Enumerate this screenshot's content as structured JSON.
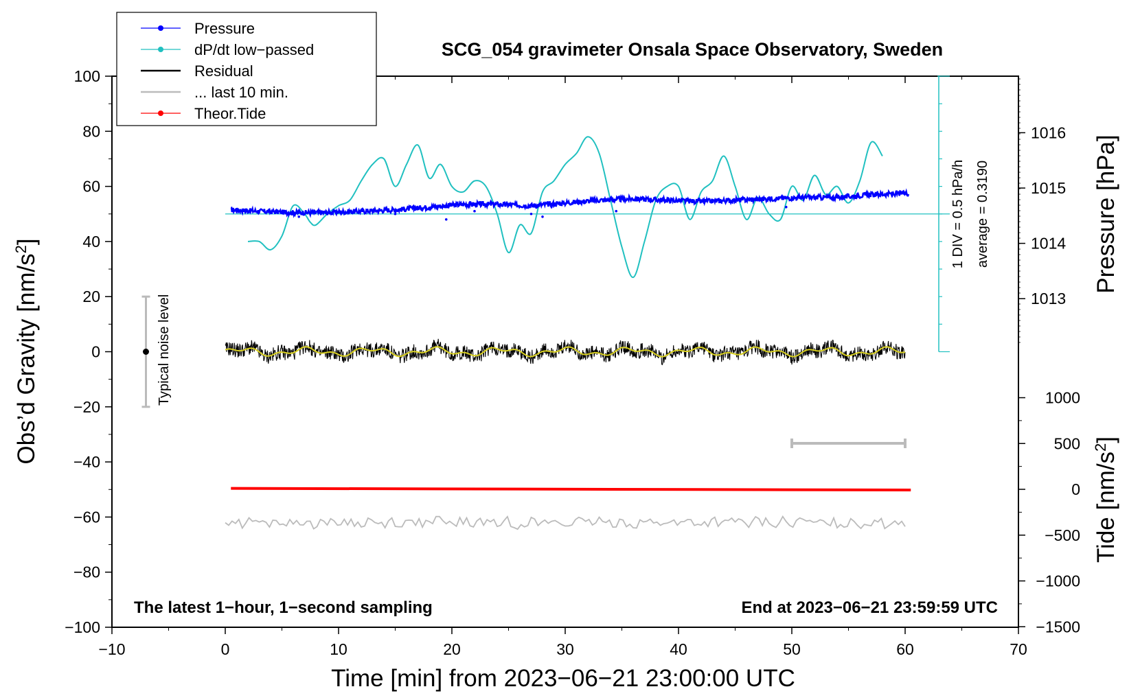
{
  "chart_data": {
    "type": "line",
    "title": "SCG_054 gravimeter Onsala Space Observatory, Sweden",
    "xlabel": "Time [min] from 2023−06−21 23:00:00 UTC",
    "ylabel": "Obs’d Gravity [nm/s²]",
    "ylabel_text": "Obs’d Gravity [nm/s",
    "ylabel_sup": "2",
    "ylabel_end": "]",
    "xlim": [
      -10,
      70
    ],
    "ylim": [
      -100,
      100
    ],
    "x_ticks": [
      "−10",
      "0",
      "10",
      "20",
      "30",
      "40",
      "50",
      "60",
      "70"
    ],
    "y_ticks": [
      "100",
      "80",
      "60",
      "40",
      "20",
      "0",
      "−20",
      "−40",
      "−60",
      "−80",
      "−100"
    ],
    "pressure_axis": {
      "label": "Pressure [hPa]",
      "ticks": [
        "1016",
        "1015",
        "1014",
        "1013"
      ],
      "tick_values": [
        1016,
        1015,
        1014,
        1013
      ]
    },
    "tide_axis": {
      "label_text": "Tide [nm/s",
      "label_sup": "2",
      "label_end": "]",
      "ticks": [
        "1000",
        "500",
        "0",
        "−500",
        "−1000",
        "−1500"
      ],
      "tick_values": [
        1000,
        500,
        0,
        -500,
        -1000,
        -1500
      ]
    },
    "scale_bar": {
      "label1": "1 DIV = 0.5 hPa/h",
      "label2": "average = 0.3190"
    },
    "noise_bar": {
      "label": "Typical noise level",
      "x": -7,
      "y_center": 0,
      "half_range": 20
    },
    "bottom_left_note": "The latest 1−hour, 1−second sampling",
    "bottom_right_note": "End at 2023−06−21 23:59:59 UTC",
    "legend": [
      {
        "label": "Pressure",
        "color": "#0000ff",
        "style": "line-dot"
      },
      {
        "label": "dP/dt low−passed",
        "color": "#20c0c0",
        "style": "line-dot"
      },
      {
        "label": "Residual",
        "color": "#000000",
        "style": "line"
      },
      {
        "label": "... last 10 min.",
        "color": "#bbbbbb",
        "style": "line"
      },
      {
        "label": "Theor.Tide",
        "color": "#ff0000",
        "style": "line-dot"
      }
    ],
    "series": [
      {
        "name": "Pressure",
        "color": "#0000ff",
        "note": "gravity-axis display values",
        "x": [
          0.5,
          3,
          6,
          9,
          12,
          15,
          18,
          21,
          24,
          27,
          30,
          33,
          36,
          39,
          42,
          45,
          48,
          51,
          54,
          57,
          60
        ],
        "values": [
          51.5,
          51,
          50.5,
          50.5,
          51,
          51.5,
          52.5,
          53.5,
          53.5,
          53,
          54,
          55,
          55.5,
          55,
          54.5,
          55,
          55.5,
          56,
          56,
          57,
          57.5
        ]
      },
      {
        "name": "dP/dt low−passed",
        "color": "#20c0c0",
        "x": [
          2,
          3,
          4,
          5,
          6,
          7,
          7.5,
          8,
          9,
          10,
          11,
          12,
          13,
          14,
          15,
          16,
          17,
          18,
          19,
          20,
          21,
          22,
          23,
          24,
          25,
          26,
          27,
          28,
          29,
          30,
          31,
          32,
          33,
          34,
          35,
          36,
          37,
          38,
          39,
          40,
          41,
          42,
          43,
          44,
          45,
          46,
          47,
          48,
          49,
          50,
          51,
          52,
          53,
          54,
          55,
          56,
          57,
          58
        ],
        "values": [
          40,
          40,
          37,
          42,
          53,
          50,
          47,
          46,
          50,
          53,
          55,
          62,
          68,
          70,
          60,
          68,
          75,
          63,
          68,
          60,
          58,
          62,
          60,
          50,
          36,
          46,
          43,
          58,
          62,
          68,
          72,
          78,
          72,
          55,
          38,
          27,
          40,
          55,
          60,
          60,
          48,
          58,
          62,
          71,
          60,
          48,
          56,
          50,
          48,
          60,
          55,
          64,
          57,
          60,
          54,
          62,
          76,
          71
        ]
      },
      {
        "name": "Residual",
        "color": "#000000",
        "note": "fluctuates about 0 nm/s2 within roughly ±4",
        "x": [
          0,
          60
        ],
        "values": [
          0,
          0
        ]
      },
      {
        "name": "... last 10 min.",
        "color": "#bbbbbb",
        "note": "fluctuates about -62 nm/s2",
        "x": [
          0,
          60
        ],
        "values": [
          -62,
          -62
        ]
      },
      {
        "name": "Theor.Tide",
        "color": "#ff0000",
        "note": "gravity-axis display values",
        "x": [
          0.5,
          60.5
        ],
        "values": [
          -49.6,
          -50.2
        ]
      }
    ]
  }
}
